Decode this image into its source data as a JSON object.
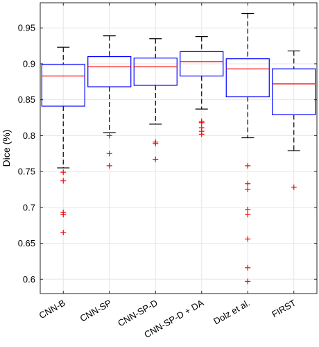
{
  "chart_data": {
    "type": "box",
    "ylabel": "Dice (%)",
    "xlabel": "",
    "title": "",
    "ylim": [
      0.58,
      0.985
    ],
    "yticks": [
      "0.6",
      "0.65",
      "0.7",
      "0.75",
      "0.8",
      "0.85",
      "0.9",
      "0.95"
    ],
    "grid": true,
    "categories": [
      "CNN-B",
      "CNN-SP",
      "CNN-SP-D",
      "CNN-SP-D + DA",
      "Dolz et al.",
      "FIRST"
    ],
    "boxes": [
      {
        "name": "CNN-B",
        "whisker_low": 0.755,
        "q1": 0.841,
        "median": 0.883,
        "q3": 0.899,
        "whisker_high": 0.923,
        "outliers": [
          0.749,
          0.737,
          0.693,
          0.69,
          0.665
        ]
      },
      {
        "name": "CNN-SP",
        "whisker_low": 0.804,
        "q1": 0.868,
        "median": 0.896,
        "q3": 0.91,
        "whisker_high": 0.939,
        "outliers": [
          0.8,
          0.775,
          0.758
        ]
      },
      {
        "name": "CNN-SP-D",
        "whisker_low": 0.816,
        "q1": 0.87,
        "median": 0.896,
        "q3": 0.908,
        "whisker_high": 0.935,
        "outliers": [
          0.791,
          0.789,
          0.767
        ]
      },
      {
        "name": "CNN-SP-D + DA",
        "whisker_low": 0.837,
        "q1": 0.883,
        "median": 0.903,
        "q3": 0.917,
        "whisker_high": 0.938,
        "outliers": [
          0.82,
          0.818,
          0.811,
          0.806,
          0.802
        ]
      },
      {
        "name": "Dolz et al.",
        "whisker_low": 0.797,
        "q1": 0.854,
        "median": 0.893,
        "q3": 0.907,
        "whisker_high": 0.97,
        "outliers": [
          0.758,
          0.733,
          0.725,
          0.697,
          0.69,
          0.656,
          0.616,
          0.597
        ]
      },
      {
        "name": "FIRST",
        "whisker_low": 0.779,
        "q1": 0.829,
        "median": 0.872,
        "q3": 0.893,
        "whisker_high": 0.918,
        "outliers": [
          0.728
        ]
      }
    ],
    "colors": {
      "box": "#0000ff",
      "median": "#ff0000",
      "outlier": "#ff0000",
      "whisker": "#000000",
      "grid": "#e6e6e6"
    }
  }
}
